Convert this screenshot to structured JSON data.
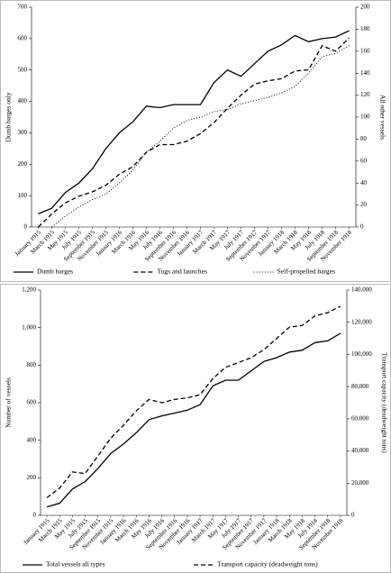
{
  "chart_data": [
    {
      "type": "line",
      "ylabel": "Dumb barges only",
      "y2label": "All other vessels",
      "categories": [
        "January 1915",
        "March 1915",
        "May 1915",
        "July 1915",
        "September 1915",
        "November 1915",
        "January 1916",
        "March 1916",
        "May 1916",
        "July 1916",
        "September 1916",
        "November 1916",
        "January 1917",
        "March 1917",
        "May 1917",
        "July 1917",
        "September 1917",
        "November 1917",
        "January 1918",
        "March 1918",
        "May 1918",
        "July 1918",
        "September 1918",
        "November 1918"
      ],
      "ylim": [
        0,
        700
      ],
      "yticks": [
        0,
        100,
        200,
        300,
        400,
        500,
        600,
        700
      ],
      "y2lim": [
        0,
        200
      ],
      "y2ticks": [
        0,
        20,
        40,
        60,
        80,
        100,
        120,
        140,
        160,
        180,
        200
      ],
      "series": [
        {
          "name": "Dumb barges",
          "color": "#000000",
          "dash": "solid",
          "axis": "y",
          "values": [
            42,
            60,
            110,
            140,
            185,
            250,
            300,
            335,
            385,
            380,
            390,
            390,
            390,
            460,
            500,
            480,
            520,
            560,
            580,
            610,
            590,
            600,
            605,
            625
          ]
        },
        {
          "name": "Tugs and launches",
          "color": "#000000",
          "dash": "dashed",
          "axis": "y2",
          "values": [
            0,
            12,
            22,
            28,
            32,
            38,
            48,
            55,
            68,
            75,
            75,
            78,
            85,
            95,
            108,
            120,
            130,
            133,
            135,
            142,
            143,
            165,
            160,
            172
          ]
        },
        {
          "name": "Self-propelled barges",
          "color": "#000000",
          "dash": "dotted",
          "axis": "y2",
          "values": [
            null,
            0,
            10,
            18,
            25,
            30,
            40,
            52,
            68,
            78,
            90,
            97,
            100,
            105,
            107,
            112,
            115,
            118,
            122,
            128,
            140,
            155,
            158,
            165
          ]
        }
      ]
    },
    {
      "type": "line",
      "ylabel": "Number of vessels",
      "y2label": "Transport capacity (deadweight tons)",
      "categories": [
        "January 1915",
        "March 1915",
        "May 1915",
        "July 1915",
        "September 1915",
        "November 1915",
        "January 1916",
        "March 1916",
        "May 1916",
        "July 1916",
        "September 1916",
        "November 1916",
        "January 1917",
        "March 1917",
        "May 1917",
        "July 1917",
        "September 1917",
        "November 1917",
        "January 1918",
        "March 1918",
        "May 1918",
        "July 1918",
        "September 1918",
        "November 1918"
      ],
      "ylim": [
        0,
        1200
      ],
      "yticks": [
        0,
        200,
        400,
        600,
        800,
        {
          "value": 1000,
          "label": "1,000"
        },
        {
          "value": 1200,
          "label": "1,200"
        }
      ],
      "y2lim": [
        0,
        140000
      ],
      "y2ticks": [
        0,
        {
          "value": 20000,
          "label": "20,000"
        },
        {
          "value": 40000,
          "label": "40,000"
        },
        {
          "value": 60000,
          "label": "60,000"
        },
        {
          "value": 80000,
          "label": "80,000"
        },
        {
          "value": 100000,
          "label": "100,000"
        },
        {
          "value": 120000,
          "label": "120,000"
        },
        {
          "value": 140000,
          "label": "140,000"
        }
      ],
      "series": [
        {
          "name": "Total vessels all types",
          "color": "#000000",
          "dash": "solid",
          "axis": "y",
          "values": [
            45,
            65,
            140,
            180,
            250,
            330,
            380,
            440,
            510,
            530,
            545,
            560,
            590,
            690,
            720,
            720,
            770,
            820,
            840,
            870,
            880,
            920,
            930,
            970
          ]
        },
        {
          "name": "Transport capacity (deadweight tons)",
          "color": "#000000",
          "dash": "dashed",
          "axis": "y2",
          "values": [
            11000,
            17000,
            27000,
            26000,
            37000,
            48000,
            56000,
            65000,
            72000,
            70000,
            72000,
            73000,
            75000,
            85000,
            92000,
            95000,
            98000,
            103000,
            110000,
            117000,
            118000,
            124000,
            126000,
            130000
          ]
        }
      ]
    }
  ]
}
